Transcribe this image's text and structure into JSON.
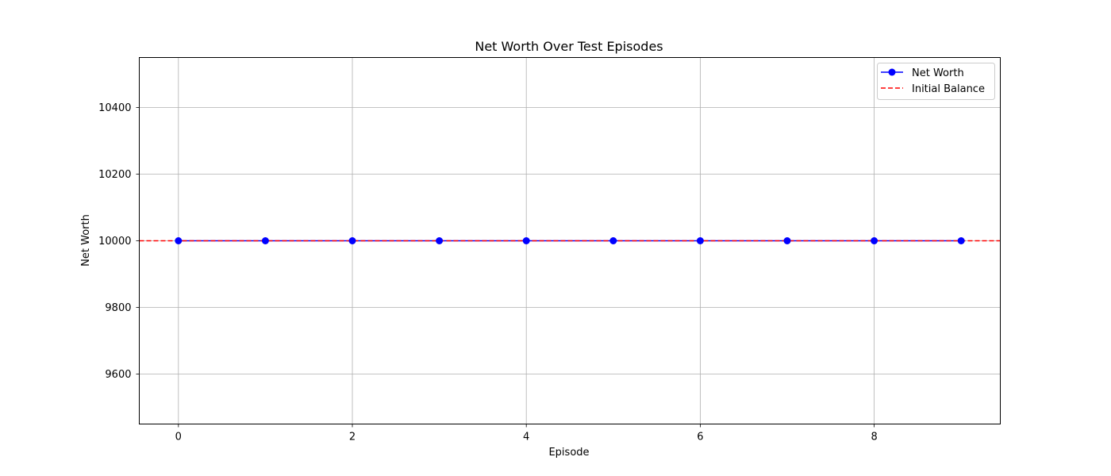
{
  "chart_data": {
    "type": "line",
    "title": "Net Worth Over Test Episodes",
    "xlabel": "Episode",
    "ylabel": "Net Worth",
    "xlim": [
      -0.45,
      9.45
    ],
    "ylim": [
      9450,
      10550
    ],
    "xticks": [
      0,
      2,
      4,
      6,
      8
    ],
    "xtick_labels": [
      "0",
      "2",
      "4",
      "6",
      "8"
    ],
    "yticks": [
      9600,
      9800,
      10000,
      10200,
      10400
    ],
    "ytick_labels": [
      "9600",
      "9800",
      "10000",
      "10200",
      "10400"
    ],
    "grid": true,
    "legend_position": "top-right",
    "series": [
      {
        "name": "Net Worth",
        "color": "#0000ff",
        "linestyle": "solid",
        "marker": "circle",
        "x": [
          0,
          1,
          2,
          3,
          4,
          5,
          6,
          7,
          8,
          9
        ],
        "y": [
          10000,
          10000,
          10000,
          10000,
          10000,
          10000,
          10000,
          10000,
          10000,
          10000
        ]
      }
    ],
    "reference_lines": [
      {
        "name": "Initial Balance",
        "color": "#ff0000",
        "linestyle": "dashed",
        "y": 10000
      }
    ]
  }
}
